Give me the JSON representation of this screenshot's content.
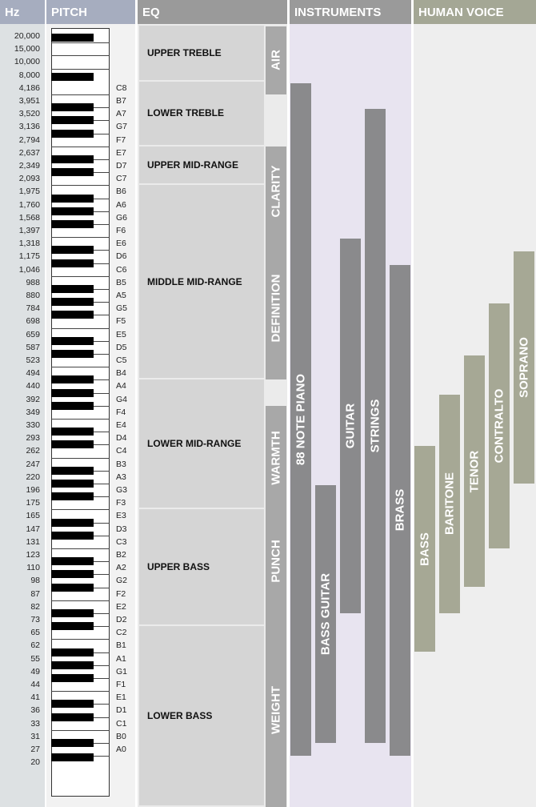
{
  "headers": {
    "hz": "Hz",
    "pitch": "PITCH",
    "eq": "EQ",
    "instruments": "INSTRUMENTS",
    "human_voice": "HUMAN VOICE"
  },
  "colors": {
    "header_blue": "#a6adbf",
    "header_gray": "#9a9a9a",
    "header_green": "#a4a795",
    "hz_bg": "#dde1e3",
    "eq_box": "#d5d5d5",
    "eq_band": "#a8a8a8",
    "instrument_bg": "#e8e4f0",
    "instrument_bar": "#8a8a8c",
    "voice_bg": "#eeeeee",
    "voice_bar": "#a6a895"
  },
  "hz_labels": [
    "20,000",
    "15,000",
    "10,000",
    "8,000",
    "4,186",
    "3,951",
    "3,520",
    "3,136",
    "2,794",
    "2,637",
    "2,349",
    "2,093",
    "1,975",
    "1,760",
    "1,568",
    "1,397",
    "1,318",
    "1,175",
    "1,046",
    "988",
    "880",
    "784",
    "698",
    "659",
    "587",
    "523",
    "494",
    "440",
    "392",
    "349",
    "330",
    "293",
    "262",
    "247",
    "220",
    "196",
    "175",
    "165",
    "147",
    "131",
    "123",
    "110",
    "98",
    "87",
    "82",
    "73",
    "65",
    "62",
    "55",
    "49",
    "44",
    "41",
    "36",
    "33",
    "31",
    "27",
    "20"
  ],
  "note_labels": [
    "C8",
    "B7",
    "A7",
    "G7",
    "F7",
    "E7",
    "D7",
    "C7",
    "B6",
    "A6",
    "G6",
    "F6",
    "E6",
    "D6",
    "C6",
    "B5",
    "A5",
    "G5",
    "F5",
    "E5",
    "D5",
    "C5",
    "B4",
    "A4",
    "G4",
    "F4",
    "E4",
    "D4",
    "C4",
    "B3",
    "A3",
    "G3",
    "F3",
    "E3",
    "D3",
    "C3",
    "B2",
    "A2",
    "G2",
    "F2",
    "E2",
    "D2",
    "C2",
    "B1",
    "A1",
    "G1",
    "F1",
    "E1",
    "D1",
    "C1",
    "B0",
    "A0"
  ],
  "eq_ranges": [
    {
      "label": "UPPER TREBLE",
      "top_hz": 20000,
      "bottom_hz": 8000
    },
    {
      "label": "LOWER TREBLE",
      "top_hz": 8000,
      "bottom_hz": 2794
    },
    {
      "label": "UPPER MID-RANGE",
      "top_hz": 2794,
      "bottom_hz": 2093
    },
    {
      "label": "MIDDLE MID-RANGE",
      "top_hz": 2093,
      "bottom_hz": 494
    },
    {
      "label": "LOWER MID-RANGE",
      "top_hz": 494,
      "bottom_hz": 175
    },
    {
      "label": "UPPER BASS",
      "top_hz": 175,
      "bottom_hz": 73
    },
    {
      "label": "LOWER BASS",
      "top_hz": 73,
      "bottom_hz": 20
    }
  ],
  "eq_bands": [
    {
      "label": "AIR",
      "top_hz": 20000,
      "bottom_hz": 4186
    },
    {
      "label": "CLARITY",
      "top_hz": 2637,
      "bottom_hz": 1397
    },
    {
      "label": "DEFINITION",
      "top_hz": 1318,
      "bottom_hz": 494
    },
    {
      "label": "WARMTH",
      "top_hz": 349,
      "bottom_hz": 175
    },
    {
      "label": "PUNCH",
      "top_hz": 165,
      "bottom_hz": 82
    },
    {
      "label": "WEIGHT",
      "top_hz": 73,
      "bottom_hz": 20
    }
  ],
  "instruments": [
    {
      "label": "88 NOTE PIANO",
      "top_hz": 4186,
      "bottom_hz": 27
    },
    {
      "label": "BASS GUITAR",
      "top_hz": 196,
      "bottom_hz": 31
    },
    {
      "label": "GUITAR",
      "top_hz": 1318,
      "bottom_hz": 82
    },
    {
      "label": "STRINGS",
      "top_hz": 3520,
      "bottom_hz": 31
    },
    {
      "label": "BRASS",
      "top_hz": 1046,
      "bottom_hz": 27
    }
  ],
  "human_voices": [
    {
      "label": "BASS",
      "top_hz": 262,
      "bottom_hz": 62
    },
    {
      "label": "BARITONE",
      "top_hz": 392,
      "bottom_hz": 82
    },
    {
      "label": "TENOR",
      "top_hz": 523,
      "bottom_hz": 98
    },
    {
      "label": "CONTRALTO",
      "top_hz": 784,
      "bottom_hz": 131
    },
    {
      "label": "SOPRANO",
      "top_hz": 1175,
      "bottom_hz": 220
    }
  ]
}
